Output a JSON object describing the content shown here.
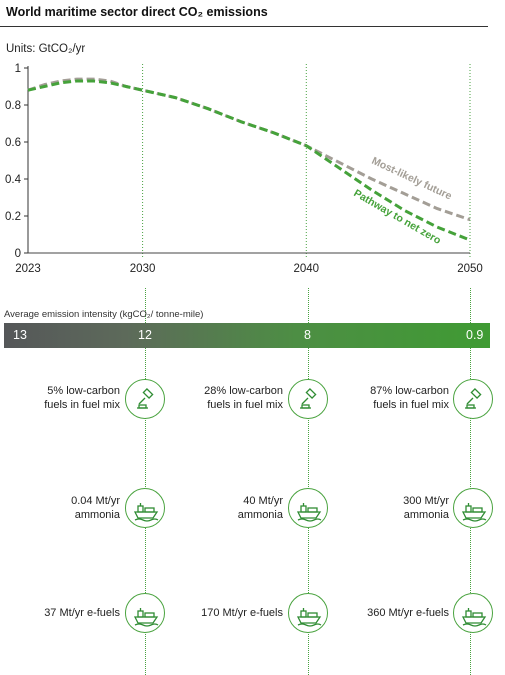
{
  "title": "World maritime sector direct CO₂ emissions",
  "units": "Units: GtCO₂/yr",
  "chart_data": {
    "type": "line",
    "xlim": [
      2023,
      2050
    ],
    "ylim": [
      0,
      1
    ],
    "x_ticks": [
      "2023",
      "2030",
      "2040",
      "2050"
    ],
    "y_ticks": [
      "0",
      "0.2",
      "0.4",
      "0.6",
      "0.8",
      "1"
    ],
    "colors": {
      "most_likely": "#a39e96",
      "net_zero": "#45a23a"
    },
    "series": [
      {
        "name": "Most-likely future",
        "x": [
          2023,
          2024,
          2025,
          2026,
          2027,
          2028,
          2029,
          2030,
          2032,
          2034,
          2036,
          2038,
          2040,
          2042,
          2044,
          2046,
          2048,
          2050
        ],
        "values": [
          0.88,
          0.91,
          0.93,
          0.94,
          0.94,
          0.93,
          0.9,
          0.88,
          0.84,
          0.78,
          0.71,
          0.65,
          0.58,
          0.49,
          0.4,
          0.32,
          0.24,
          0.18
        ]
      },
      {
        "name": "Pathway to net zero",
        "x": [
          2023,
          2024,
          2025,
          2026,
          2027,
          2028,
          2029,
          2030,
          2032,
          2034,
          2036,
          2038,
          2040,
          2042,
          2044,
          2046,
          2048,
          2050
        ],
        "values": [
          0.88,
          0.9,
          0.92,
          0.93,
          0.93,
          0.92,
          0.9,
          0.88,
          0.84,
          0.78,
          0.71,
          0.65,
          0.58,
          0.46,
          0.34,
          0.23,
          0.14,
          0.07
        ]
      }
    ]
  },
  "intensity": {
    "label": "Average emission intensity (kgCO₂/ tonne-mile)",
    "values": [
      "13",
      "12",
      "8",
      "0.9"
    ]
  },
  "rows": [
    {
      "icon": "gavel-icon",
      "items": [
        {
          "line1": "5% low-carbon",
          "line2": "fuels in fuel mix"
        },
        {
          "line1": "28% low-carbon",
          "line2": "fuels in fuel mix"
        },
        {
          "line1": "87% low-carbon",
          "line2": "fuels in fuel mix"
        }
      ]
    },
    {
      "icon": "ship-icon",
      "items": [
        {
          "line1": "0.04 Mt/yr",
          "line2": "ammonia"
        },
        {
          "line1": "40 Mt/yr",
          "line2": "ammonia"
        },
        {
          "line1": "300 Mt/yr",
          "line2": "ammonia"
        }
      ]
    },
    {
      "icon": "ship-icon",
      "items": [
        {
          "line1": "37 Mt/yr e-fuels",
          "line2": ""
        },
        {
          "line1": "170 Mt/yr e-fuels",
          "line2": ""
        },
        {
          "line1": "360 Mt/yr e-fuels",
          "line2": ""
        }
      ]
    }
  ]
}
